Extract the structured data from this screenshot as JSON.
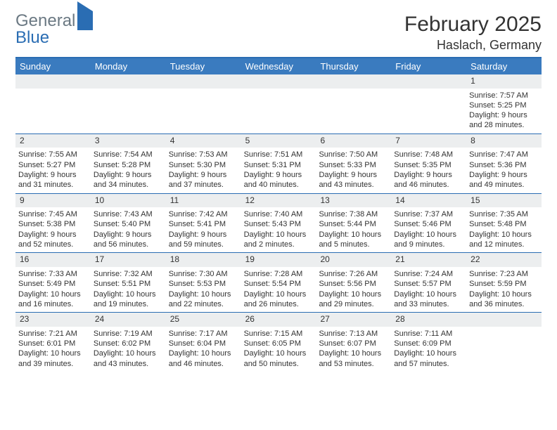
{
  "brand": {
    "word1": "General",
    "word2": "Blue"
  },
  "header": {
    "month_title": "February 2025",
    "location": "Haslach, Germany"
  },
  "colors": {
    "header_bar": "#3a7bbf",
    "accent_line": "#2a6db3",
    "num_bar_bg": "#eceeef",
    "text": "#333333",
    "logo_gray": "#6b7983",
    "background": "#ffffff"
  },
  "day_names": [
    "Sunday",
    "Monday",
    "Tuesday",
    "Wednesday",
    "Thursday",
    "Friday",
    "Saturday"
  ],
  "weeks": [
    [
      {
        "blank": true
      },
      {
        "blank": true
      },
      {
        "blank": true
      },
      {
        "blank": true
      },
      {
        "blank": true
      },
      {
        "blank": true
      },
      {
        "num": "1",
        "sunrise": "Sunrise: 7:57 AM",
        "sunset": "Sunset: 5:25 PM",
        "daylight1": "Daylight: 9 hours",
        "daylight2": "and 28 minutes."
      }
    ],
    [
      {
        "num": "2",
        "sunrise": "Sunrise: 7:55 AM",
        "sunset": "Sunset: 5:27 PM",
        "daylight1": "Daylight: 9 hours",
        "daylight2": "and 31 minutes."
      },
      {
        "num": "3",
        "sunrise": "Sunrise: 7:54 AM",
        "sunset": "Sunset: 5:28 PM",
        "daylight1": "Daylight: 9 hours",
        "daylight2": "and 34 minutes."
      },
      {
        "num": "4",
        "sunrise": "Sunrise: 7:53 AM",
        "sunset": "Sunset: 5:30 PM",
        "daylight1": "Daylight: 9 hours",
        "daylight2": "and 37 minutes."
      },
      {
        "num": "5",
        "sunrise": "Sunrise: 7:51 AM",
        "sunset": "Sunset: 5:31 PM",
        "daylight1": "Daylight: 9 hours",
        "daylight2": "and 40 minutes."
      },
      {
        "num": "6",
        "sunrise": "Sunrise: 7:50 AM",
        "sunset": "Sunset: 5:33 PM",
        "daylight1": "Daylight: 9 hours",
        "daylight2": "and 43 minutes."
      },
      {
        "num": "7",
        "sunrise": "Sunrise: 7:48 AM",
        "sunset": "Sunset: 5:35 PM",
        "daylight1": "Daylight: 9 hours",
        "daylight2": "and 46 minutes."
      },
      {
        "num": "8",
        "sunrise": "Sunrise: 7:47 AM",
        "sunset": "Sunset: 5:36 PM",
        "daylight1": "Daylight: 9 hours",
        "daylight2": "and 49 minutes."
      }
    ],
    [
      {
        "num": "9",
        "sunrise": "Sunrise: 7:45 AM",
        "sunset": "Sunset: 5:38 PM",
        "daylight1": "Daylight: 9 hours",
        "daylight2": "and 52 minutes."
      },
      {
        "num": "10",
        "sunrise": "Sunrise: 7:43 AM",
        "sunset": "Sunset: 5:40 PM",
        "daylight1": "Daylight: 9 hours",
        "daylight2": "and 56 minutes."
      },
      {
        "num": "11",
        "sunrise": "Sunrise: 7:42 AM",
        "sunset": "Sunset: 5:41 PM",
        "daylight1": "Daylight: 9 hours",
        "daylight2": "and 59 minutes."
      },
      {
        "num": "12",
        "sunrise": "Sunrise: 7:40 AM",
        "sunset": "Sunset: 5:43 PM",
        "daylight1": "Daylight: 10 hours",
        "daylight2": "and 2 minutes."
      },
      {
        "num": "13",
        "sunrise": "Sunrise: 7:38 AM",
        "sunset": "Sunset: 5:44 PM",
        "daylight1": "Daylight: 10 hours",
        "daylight2": "and 5 minutes."
      },
      {
        "num": "14",
        "sunrise": "Sunrise: 7:37 AM",
        "sunset": "Sunset: 5:46 PM",
        "daylight1": "Daylight: 10 hours",
        "daylight2": "and 9 minutes."
      },
      {
        "num": "15",
        "sunrise": "Sunrise: 7:35 AM",
        "sunset": "Sunset: 5:48 PM",
        "daylight1": "Daylight: 10 hours",
        "daylight2": "and 12 minutes."
      }
    ],
    [
      {
        "num": "16",
        "sunrise": "Sunrise: 7:33 AM",
        "sunset": "Sunset: 5:49 PM",
        "daylight1": "Daylight: 10 hours",
        "daylight2": "and 16 minutes."
      },
      {
        "num": "17",
        "sunrise": "Sunrise: 7:32 AM",
        "sunset": "Sunset: 5:51 PM",
        "daylight1": "Daylight: 10 hours",
        "daylight2": "and 19 minutes."
      },
      {
        "num": "18",
        "sunrise": "Sunrise: 7:30 AM",
        "sunset": "Sunset: 5:53 PM",
        "daylight1": "Daylight: 10 hours",
        "daylight2": "and 22 minutes."
      },
      {
        "num": "19",
        "sunrise": "Sunrise: 7:28 AM",
        "sunset": "Sunset: 5:54 PM",
        "daylight1": "Daylight: 10 hours",
        "daylight2": "and 26 minutes."
      },
      {
        "num": "20",
        "sunrise": "Sunrise: 7:26 AM",
        "sunset": "Sunset: 5:56 PM",
        "daylight1": "Daylight: 10 hours",
        "daylight2": "and 29 minutes."
      },
      {
        "num": "21",
        "sunrise": "Sunrise: 7:24 AM",
        "sunset": "Sunset: 5:57 PM",
        "daylight1": "Daylight: 10 hours",
        "daylight2": "and 33 minutes."
      },
      {
        "num": "22",
        "sunrise": "Sunrise: 7:23 AM",
        "sunset": "Sunset: 5:59 PM",
        "daylight1": "Daylight: 10 hours",
        "daylight2": "and 36 minutes."
      }
    ],
    [
      {
        "num": "23",
        "sunrise": "Sunrise: 7:21 AM",
        "sunset": "Sunset: 6:01 PM",
        "daylight1": "Daylight: 10 hours",
        "daylight2": "and 39 minutes."
      },
      {
        "num": "24",
        "sunrise": "Sunrise: 7:19 AM",
        "sunset": "Sunset: 6:02 PM",
        "daylight1": "Daylight: 10 hours",
        "daylight2": "and 43 minutes."
      },
      {
        "num": "25",
        "sunrise": "Sunrise: 7:17 AM",
        "sunset": "Sunset: 6:04 PM",
        "daylight1": "Daylight: 10 hours",
        "daylight2": "and 46 minutes."
      },
      {
        "num": "26",
        "sunrise": "Sunrise: 7:15 AM",
        "sunset": "Sunset: 6:05 PM",
        "daylight1": "Daylight: 10 hours",
        "daylight2": "and 50 minutes."
      },
      {
        "num": "27",
        "sunrise": "Sunrise: 7:13 AM",
        "sunset": "Sunset: 6:07 PM",
        "daylight1": "Daylight: 10 hours",
        "daylight2": "and 53 minutes."
      },
      {
        "num": "28",
        "sunrise": "Sunrise: 7:11 AM",
        "sunset": "Sunset: 6:09 PM",
        "daylight1": "Daylight: 10 hours",
        "daylight2": "and 57 minutes."
      },
      {
        "blank": true
      }
    ]
  ]
}
